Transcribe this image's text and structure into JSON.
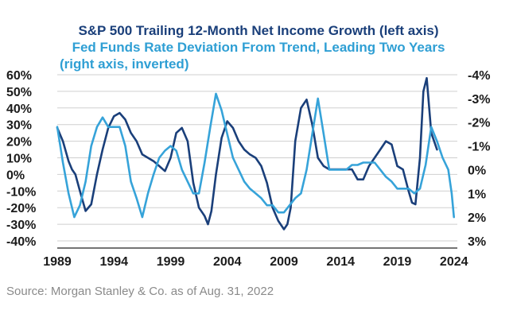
{
  "titles": {
    "line1": "S&P 500 Trailing 12-Month Net Income Growth (left axis)",
    "line2": "Fed Funds Rate Deviation From Trend, Leading Two Years",
    "line3": "(right axis, inverted)"
  },
  "source": "Source: Morgan Stanley & Co. as of Aug. 31, 2022",
  "colors": {
    "earnings": "#1a3f7a",
    "fedfunds": "#36a3d9",
    "grid": "#cfcfcf"
  },
  "chart_data": {
    "type": "line",
    "title": "S&P 500 Trailing 12-Month Net Income Growth vs Fed Funds Rate Deviation From Trend",
    "x_ticks": [
      "1989",
      "1994",
      "1999",
      "2004",
      "2009",
      "2014",
      "2019",
      "2024"
    ],
    "xlim": [
      1989,
      2024.3
    ],
    "left_axis": {
      "ticks": [
        "60%",
        "50%",
        "40%",
        "30%",
        "20%",
        "10%",
        "0%",
        "-10%",
        "-20%",
        "-30%",
        "-40%"
      ],
      "ylim": [
        -40,
        60
      ]
    },
    "right_axis": {
      "ticks": [
        "-4%",
        "-3%",
        "-2%",
        "-1%",
        "0%",
        "1%",
        "2%",
        "3%"
      ],
      "ylim": [
        -4,
        3
      ],
      "inverted": true
    },
    "grid": true,
    "series": [
      {
        "name": "S&P 500 Trailing 12-Month Net Income Growth (left axis)",
        "axis": "left",
        "x": [
          1989.0,
          1989.5,
          1990.0,
          1990.3,
          1990.6,
          1991.0,
          1991.5,
          1992.0,
          1992.5,
          1993.0,
          1993.5,
          1994.0,
          1994.5,
          1995.0,
          1995.5,
          1996.0,
          1996.5,
          1997.0,
          1997.5,
          1998.0,
          1998.5,
          1999.0,
          1999.5,
          2000.0,
          2000.5,
          2001.0,
          2001.5,
          2002.0,
          2002.3,
          2002.6,
          2003.0,
          2003.5,
          2004.0,
          2004.5,
          2005.0,
          2005.5,
          2006.0,
          2006.5,
          2007.0,
          2007.5,
          2008.0,
          2008.5,
          2009.0,
          2009.3,
          2009.6,
          2010.0,
          2010.5,
          2011.0,
          2011.5,
          2012.0,
          2012.5,
          2013.0,
          2013.5,
          2014.0,
          2014.5,
          2015.0,
          2015.5,
          2016.0,
          2016.5,
          2017.0,
          2017.5,
          2018.0,
          2018.5,
          2019.0,
          2019.5,
          2020.0,
          2020.3,
          2020.6,
          2021.0,
          2021.3,
          2021.6,
          2022.0,
          2022.5
        ],
        "values": [
          28,
          20,
          8,
          3,
          0,
          -10,
          -22,
          -18,
          0,
          15,
          28,
          35,
          37,
          33,
          25,
          20,
          12,
          10,
          8,
          5,
          2,
          10,
          25,
          28,
          20,
          -5,
          -20,
          -25,
          -30,
          -22,
          0,
          22,
          32,
          28,
          20,
          15,
          12,
          10,
          5,
          -5,
          -20,
          -28,
          -33,
          -30,
          -20,
          20,
          40,
          45,
          30,
          10,
          5,
          3,
          3,
          3,
          3,
          3,
          -3,
          -3,
          5,
          10,
          15,
          20,
          18,
          5,
          3,
          -10,
          -17,
          -18,
          10,
          50,
          58,
          25,
          15
        ]
      },
      {
        "name": "Fed Funds Rate Deviation From Trend, Leading Two Years (right axis, inverted)",
        "axis": "right",
        "x": [
          1989.0,
          1989.5,
          1990.0,
          1990.5,
          1991.0,
          1991.5,
          1992.0,
          1992.5,
          1993.0,
          1993.5,
          1994.0,
          1994.5,
          1995.0,
          1995.5,
          1996.0,
          1996.5,
          1997.0,
          1997.5,
          1998.0,
          1998.5,
          1999.0,
          1999.5,
          2000.0,
          2000.5,
          2001.0,
          2001.5,
          2002.0,
          2002.5,
          2003.0,
          2003.5,
          2004.0,
          2004.5,
          2005.0,
          2005.5,
          2006.0,
          2006.5,
          2007.0,
          2007.5,
          2008.0,
          2008.5,
          2009.0,
          2009.5,
          2010.0,
          2010.5,
          2011.0,
          2011.5,
          2012.0,
          2012.5,
          2013.0,
          2013.5,
          2014.0,
          2014.5,
          2015.0,
          2015.5,
          2016.0,
          2016.5,
          2017.0,
          2017.5,
          2018.0,
          2018.5,
          2019.0,
          2019.5,
          2020.0,
          2020.5,
          2021.0,
          2021.5,
          2022.0,
          2022.5,
          2023.0,
          2023.5,
          2023.8,
          2024.0
        ],
        "values": [
          -1.8,
          -0.3,
          1.0,
          2.0,
          1.5,
          0.5,
          -1.0,
          -1.8,
          -2.2,
          -1.8,
          -1.8,
          -1.8,
          -1.0,
          0.5,
          1.2,
          2.0,
          1.0,
          0.2,
          -0.5,
          -0.8,
          -1.0,
          -0.8,
          0.0,
          0.5,
          1.0,
          1.0,
          -0.3,
          -1.8,
          -3.2,
          -2.5,
          -1.5,
          -0.5,
          0.0,
          0.5,
          0.8,
          1.0,
          1.2,
          1.5,
          1.5,
          1.8,
          1.8,
          1.5,
          1.2,
          1.0,
          0.0,
          -1.5,
          -3.0,
          -1.5,
          0.0,
          0.0,
          0.0,
          0.0,
          -0.2,
          -0.2,
          -0.3,
          -0.3,
          -0.3,
          0.0,
          0.3,
          0.5,
          0.8,
          0.8,
          0.8,
          1.0,
          0.8,
          -0.2,
          -1.8,
          -1.2,
          -0.5,
          0.0,
          1.0,
          2.0
        ]
      }
    ]
  }
}
